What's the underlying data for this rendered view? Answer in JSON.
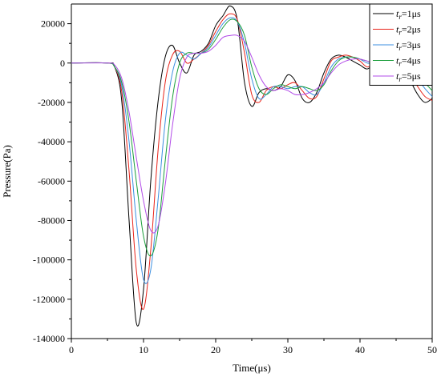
{
  "chart_data": {
    "type": "line",
    "xlabel": "Time(μs)",
    "ylabel": "Pressure(Pa)",
    "xlim": [
      0,
      50
    ],
    "ylim": [
      -140000,
      30000
    ],
    "x_ticks": [
      "0",
      "10",
      "20",
      "30",
      "40",
      "50"
    ],
    "y_ticks": [
      "20000",
      "0",
      "-20000",
      "-40000",
      "-60000",
      "-80000",
      "-100000",
      "-120000",
      "-140000"
    ],
    "x_tick_values": [
      0,
      10,
      20,
      30,
      40,
      50
    ],
    "y_tick_values": [
      20000,
      0,
      -20000,
      -40000,
      -60000,
      -80000,
      -100000,
      -120000,
      -140000
    ],
    "grid": false,
    "legend_position": "top-right",
    "series": [
      {
        "name": "t_r=1μs",
        "label_main": "t",
        "label_sub": "r",
        "label_tail": "=1μs",
        "color": "#000000",
        "points": [
          [
            0,
            0
          ],
          [
            5,
            0
          ],
          [
            6,
            -2000
          ],
          [
            7,
            -20000
          ],
          [
            8,
            -80000
          ],
          [
            9,
            -132000
          ],
          [
            10,
            -115000
          ],
          [
            11,
            -60000
          ],
          [
            12,
            -20000
          ],
          [
            13,
            3000
          ],
          [
            14,
            9000
          ],
          [
            15,
            0
          ],
          [
            16,
            -5000
          ],
          [
            17,
            4000
          ],
          [
            18,
            6000
          ],
          [
            19,
            10000
          ],
          [
            20,
            19000
          ],
          [
            21,
            24000
          ],
          [
            22,
            29000
          ],
          [
            23,
            22000
          ],
          [
            24,
            -10000
          ],
          [
            25,
            -22000
          ],
          [
            26,
            -15000
          ],
          [
            27,
            -13000
          ],
          [
            28,
            -14000
          ],
          [
            29,
            -12000
          ],
          [
            30,
            -6000
          ],
          [
            31,
            -9000
          ],
          [
            32,
            -18000
          ],
          [
            33,
            -20000
          ],
          [
            34,
            -15000
          ],
          [
            35,
            -5000
          ],
          [
            36,
            2000
          ],
          [
            37,
            4000
          ],
          [
            38,
            3000
          ],
          [
            39,
            1000
          ],
          [
            40,
            -1000
          ],
          [
            41,
            -3000
          ],
          [
            42,
            0
          ],
          [
            43,
            3000
          ],
          [
            44,
            5000
          ],
          [
            45,
            4000
          ],
          [
            46,
            0
          ],
          [
            47,
            -9000
          ],
          [
            48,
            -16000
          ],
          [
            49,
            -20000
          ],
          [
            50,
            -18000
          ]
        ]
      },
      {
        "name": "t_r=2μs",
        "label_main": "t",
        "label_sub": "r",
        "label_tail": "=2μs",
        "color": "#e8231a",
        "points": [
          [
            0,
            0
          ],
          [
            5,
            0
          ],
          [
            6,
            -2000
          ],
          [
            7,
            -15000
          ],
          [
            8,
            -55000
          ],
          [
            9,
            -105000
          ],
          [
            10,
            -125000
          ],
          [
            11,
            -95000
          ],
          [
            12,
            -45000
          ],
          [
            13,
            -10000
          ],
          [
            14,
            4000
          ],
          [
            15,
            6000
          ],
          [
            16,
            0
          ],
          [
            17,
            2000
          ],
          [
            18,
            5000
          ],
          [
            19,
            9000
          ],
          [
            20,
            16000
          ],
          [
            21,
            22000
          ],
          [
            22,
            25000
          ],
          [
            23,
            22000
          ],
          [
            24,
            5000
          ],
          [
            25,
            -16000
          ],
          [
            26,
            -20000
          ],
          [
            27,
            -14000
          ],
          [
            28,
            -12000
          ],
          [
            29,
            -13000
          ],
          [
            30,
            -11000
          ],
          [
            31,
            -10000
          ],
          [
            32,
            -14000
          ],
          [
            33,
            -18000
          ],
          [
            34,
            -17000
          ],
          [
            35,
            -8000
          ],
          [
            36,
            1000
          ],
          [
            37,
            3000
          ],
          [
            38,
            4000
          ],
          [
            39,
            3000
          ],
          [
            40,
            1000
          ],
          [
            41,
            -2000
          ],
          [
            42,
            0
          ],
          [
            43,
            2000
          ],
          [
            44,
            4000
          ],
          [
            45,
            4000
          ],
          [
            46,
            2000
          ],
          [
            47,
            -6000
          ],
          [
            48,
            -12000
          ],
          [
            49,
            -17000
          ],
          [
            50,
            -19000
          ]
        ]
      },
      {
        "name": "t_r=3μs",
        "label_main": "t",
        "label_sub": "r",
        "label_tail": "=3μs",
        "color": "#3b8fe0",
        "points": [
          [
            0,
            0
          ],
          [
            5,
            0
          ],
          [
            6,
            -2000
          ],
          [
            7,
            -12000
          ],
          [
            8,
            -40000
          ],
          [
            9,
            -80000
          ],
          [
            10,
            -110000
          ],
          [
            11,
            -105000
          ],
          [
            12,
            -70000
          ],
          [
            13,
            -30000
          ],
          [
            14,
            -5000
          ],
          [
            15,
            5000
          ],
          [
            16,
            4000
          ],
          [
            17,
            2000
          ],
          [
            18,
            5000
          ],
          [
            19,
            8000
          ],
          [
            20,
            14000
          ],
          [
            21,
            20000
          ],
          [
            22,
            23000
          ],
          [
            23,
            21000
          ],
          [
            24,
            10000
          ],
          [
            25,
            -8000
          ],
          [
            26,
            -18000
          ],
          [
            27,
            -16000
          ],
          [
            28,
            -12000
          ],
          [
            29,
            -12000
          ],
          [
            30,
            -13000
          ],
          [
            31,
            -12000
          ],
          [
            32,
            -12000
          ],
          [
            33,
            -15000
          ],
          [
            34,
            -16000
          ],
          [
            35,
            -10000
          ],
          [
            36,
            -2000
          ],
          [
            37,
            2000
          ],
          [
            38,
            3000
          ],
          [
            39,
            3000
          ],
          [
            40,
            2000
          ],
          [
            41,
            0
          ],
          [
            42,
            0
          ],
          [
            43,
            1000
          ],
          [
            44,
            3000
          ],
          [
            45,
            4000
          ],
          [
            46,
            3000
          ],
          [
            47,
            -2000
          ],
          [
            48,
            -8000
          ],
          [
            49,
            -13000
          ],
          [
            50,
            -17000
          ]
        ]
      },
      {
        "name": "t_r=4μs",
        "label_main": "t",
        "label_sub": "r",
        "label_tail": "=4μs",
        "color": "#1a9e3a",
        "points": [
          [
            0,
            0
          ],
          [
            5,
            0
          ],
          [
            6,
            -2000
          ],
          [
            7,
            -10000
          ],
          [
            8,
            -30000
          ],
          [
            9,
            -60000
          ],
          [
            10,
            -88000
          ],
          [
            11,
            -98000
          ],
          [
            12,
            -85000
          ],
          [
            13,
            -50000
          ],
          [
            14,
            -18000
          ],
          [
            15,
            0
          ],
          [
            16,
            5000
          ],
          [
            17,
            5000
          ],
          [
            18,
            5000
          ],
          [
            19,
            7000
          ],
          [
            20,
            12000
          ],
          [
            21,
            18000
          ],
          [
            22,
            22000
          ],
          [
            23,
            21000
          ],
          [
            24,
            14000
          ],
          [
            25,
            -2000
          ],
          [
            26,
            -13000
          ],
          [
            27,
            -16000
          ],
          [
            28,
            -13000
          ],
          [
            29,
            -11000
          ],
          [
            30,
            -12000
          ],
          [
            31,
            -13000
          ],
          [
            32,
            -12000
          ],
          [
            33,
            -13000
          ],
          [
            34,
            -14000
          ],
          [
            35,
            -11000
          ],
          [
            36,
            -4000
          ],
          [
            37,
            1000
          ],
          [
            38,
            3000
          ],
          [
            39,
            3000
          ],
          [
            40,
            2000
          ],
          [
            41,
            1000
          ],
          [
            42,
            0
          ],
          [
            43,
            1000
          ],
          [
            44,
            2000
          ],
          [
            45,
            3000
          ],
          [
            46,
            3000
          ],
          [
            47,
            0
          ],
          [
            48,
            -5000
          ],
          [
            49,
            -10000
          ],
          [
            50,
            -14000
          ]
        ]
      },
      {
        "name": "t_r=5μs",
        "label_main": "t",
        "label_sub": "r",
        "label_tail": "=5μs",
        "color": "#b24be8",
        "points": [
          [
            0,
            0
          ],
          [
            5,
            0
          ],
          [
            6,
            -1000
          ],
          [
            7,
            -8000
          ],
          [
            8,
            -25000
          ],
          [
            9,
            -48000
          ],
          [
            10,
            -70000
          ],
          [
            11,
            -85000
          ],
          [
            12,
            -83000
          ],
          [
            13,
            -62000
          ],
          [
            14,
            -32000
          ],
          [
            15,
            -8000
          ],
          [
            16,
            3000
          ],
          [
            17,
            5000
          ],
          [
            18,
            5000
          ],
          [
            19,
            6000
          ],
          [
            20,
            9000
          ],
          [
            21,
            13000
          ],
          [
            22,
            14000
          ],
          [
            23,
            14000
          ],
          [
            24,
            11000
          ],
          [
            25,
            3000
          ],
          [
            26,
            -6000
          ],
          [
            27,
            -12000
          ],
          [
            28,
            -14000
          ],
          [
            29,
            -13000
          ],
          [
            30,
            -14000
          ],
          [
            31,
            -16000
          ],
          [
            32,
            -16000
          ],
          [
            33,
            -15000
          ],
          [
            34,
            -13000
          ],
          [
            35,
            -10000
          ],
          [
            36,
            -5000
          ],
          [
            37,
            -1000
          ],
          [
            38,
            1000
          ],
          [
            39,
            2000
          ],
          [
            40,
            2000
          ],
          [
            41,
            1000
          ],
          [
            42,
            0
          ],
          [
            43,
            0
          ],
          [
            44,
            1000
          ],
          [
            45,
            2000
          ],
          [
            46,
            2000
          ],
          [
            47,
            1000
          ],
          [
            48,
            -1000
          ],
          [
            49,
            -4000
          ],
          [
            50,
            -8000
          ]
        ]
      }
    ]
  }
}
